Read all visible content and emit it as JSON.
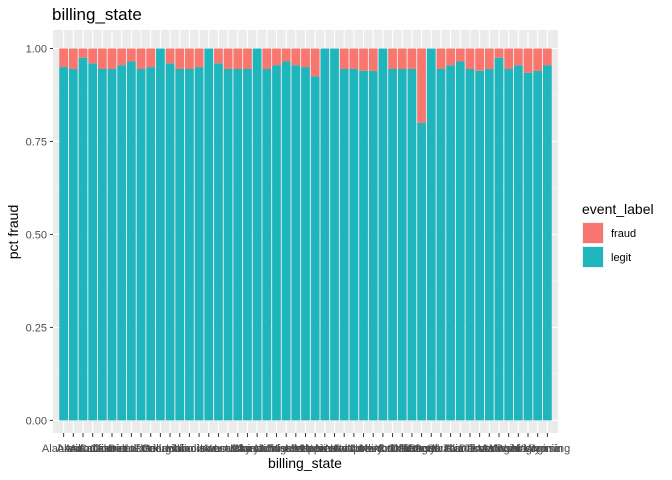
{
  "chart_data": {
    "type": "bar",
    "stacked": true,
    "title": "billing_state",
    "xlabel": "billing_state",
    "ylabel": "pct fraud",
    "ylim": [
      0,
      1
    ],
    "yticks": [
      "0.00",
      "0.25",
      "0.50",
      "0.75",
      "1.00"
    ],
    "ytick_values": [
      0,
      0.25,
      0.5,
      0.75,
      1.0
    ],
    "grid": true,
    "background": "#ebebeb",
    "legend": {
      "title": "event_label",
      "position": "right"
    },
    "categories": [
      "Alabama",
      "Alaska",
      "Arizona",
      "Arkansas",
      "California",
      "Colorado",
      "Connecticut",
      "Delaware",
      "District of Columbia",
      "Florida",
      "Georgia",
      "Hawaii",
      "Idaho",
      "Illinois",
      "Indiana",
      "Iowa",
      "Kansas",
      "Kentucky",
      "Louisiana",
      "Maine",
      "Maryland",
      "Massachusetts",
      "Michigan",
      "Minnesota",
      "Mississippi",
      "Missouri",
      "Montana",
      "Nebraska",
      "Nevada",
      "New Hampshire",
      "New Jersey",
      "New Mexico",
      "New York",
      "North Carolina",
      "North Dakota",
      "Ohio",
      "Oklahoma",
      "Oregon",
      "Pennsylvania",
      "Rhode Island",
      "South Carolina",
      "South Dakota",
      "Tennessee",
      "Texas",
      "Utah",
      "Vermont",
      "Virginia",
      "Washington",
      "West Virginia",
      "Wisconsin",
      "Wyoming"
    ],
    "series": [
      {
        "name": "legit",
        "color": "#1eb5bc",
        "values": [
          0.95,
          0.945,
          0.975,
          0.96,
          0.945,
          0.945,
          0.955,
          0.965,
          0.945,
          0.95,
          1.0,
          0.96,
          0.945,
          0.945,
          0.95,
          1.0,
          0.96,
          0.945,
          0.945,
          0.945,
          1.0,
          0.945,
          0.955,
          0.965,
          0.955,
          0.95,
          0.925,
          1.0,
          1.0,
          0.945,
          0.945,
          0.94,
          0.94,
          1.0,
          0.945,
          0.945,
          0.945,
          0.8,
          1.0,
          0.945,
          0.955,
          0.965,
          0.945,
          0.94,
          0.945,
          0.975,
          0.945,
          0.955,
          0.935,
          0.94,
          0.955
        ]
      },
      {
        "name": "fraud",
        "color": "#f8766d",
        "values": [
          0.05,
          0.055,
          0.025,
          0.04,
          0.055,
          0.055,
          0.045,
          0.035,
          0.055,
          0.05,
          0.0,
          0.04,
          0.055,
          0.055,
          0.05,
          0.0,
          0.04,
          0.055,
          0.055,
          0.055,
          0.0,
          0.055,
          0.045,
          0.035,
          0.045,
          0.05,
          0.075,
          0.0,
          0.0,
          0.055,
          0.055,
          0.06,
          0.06,
          0.0,
          0.055,
          0.055,
          0.055,
          0.2,
          0.0,
          0.055,
          0.045,
          0.035,
          0.055,
          0.06,
          0.055,
          0.025,
          0.055,
          0.045,
          0.065,
          0.06,
          0.045
        ]
      }
    ]
  }
}
